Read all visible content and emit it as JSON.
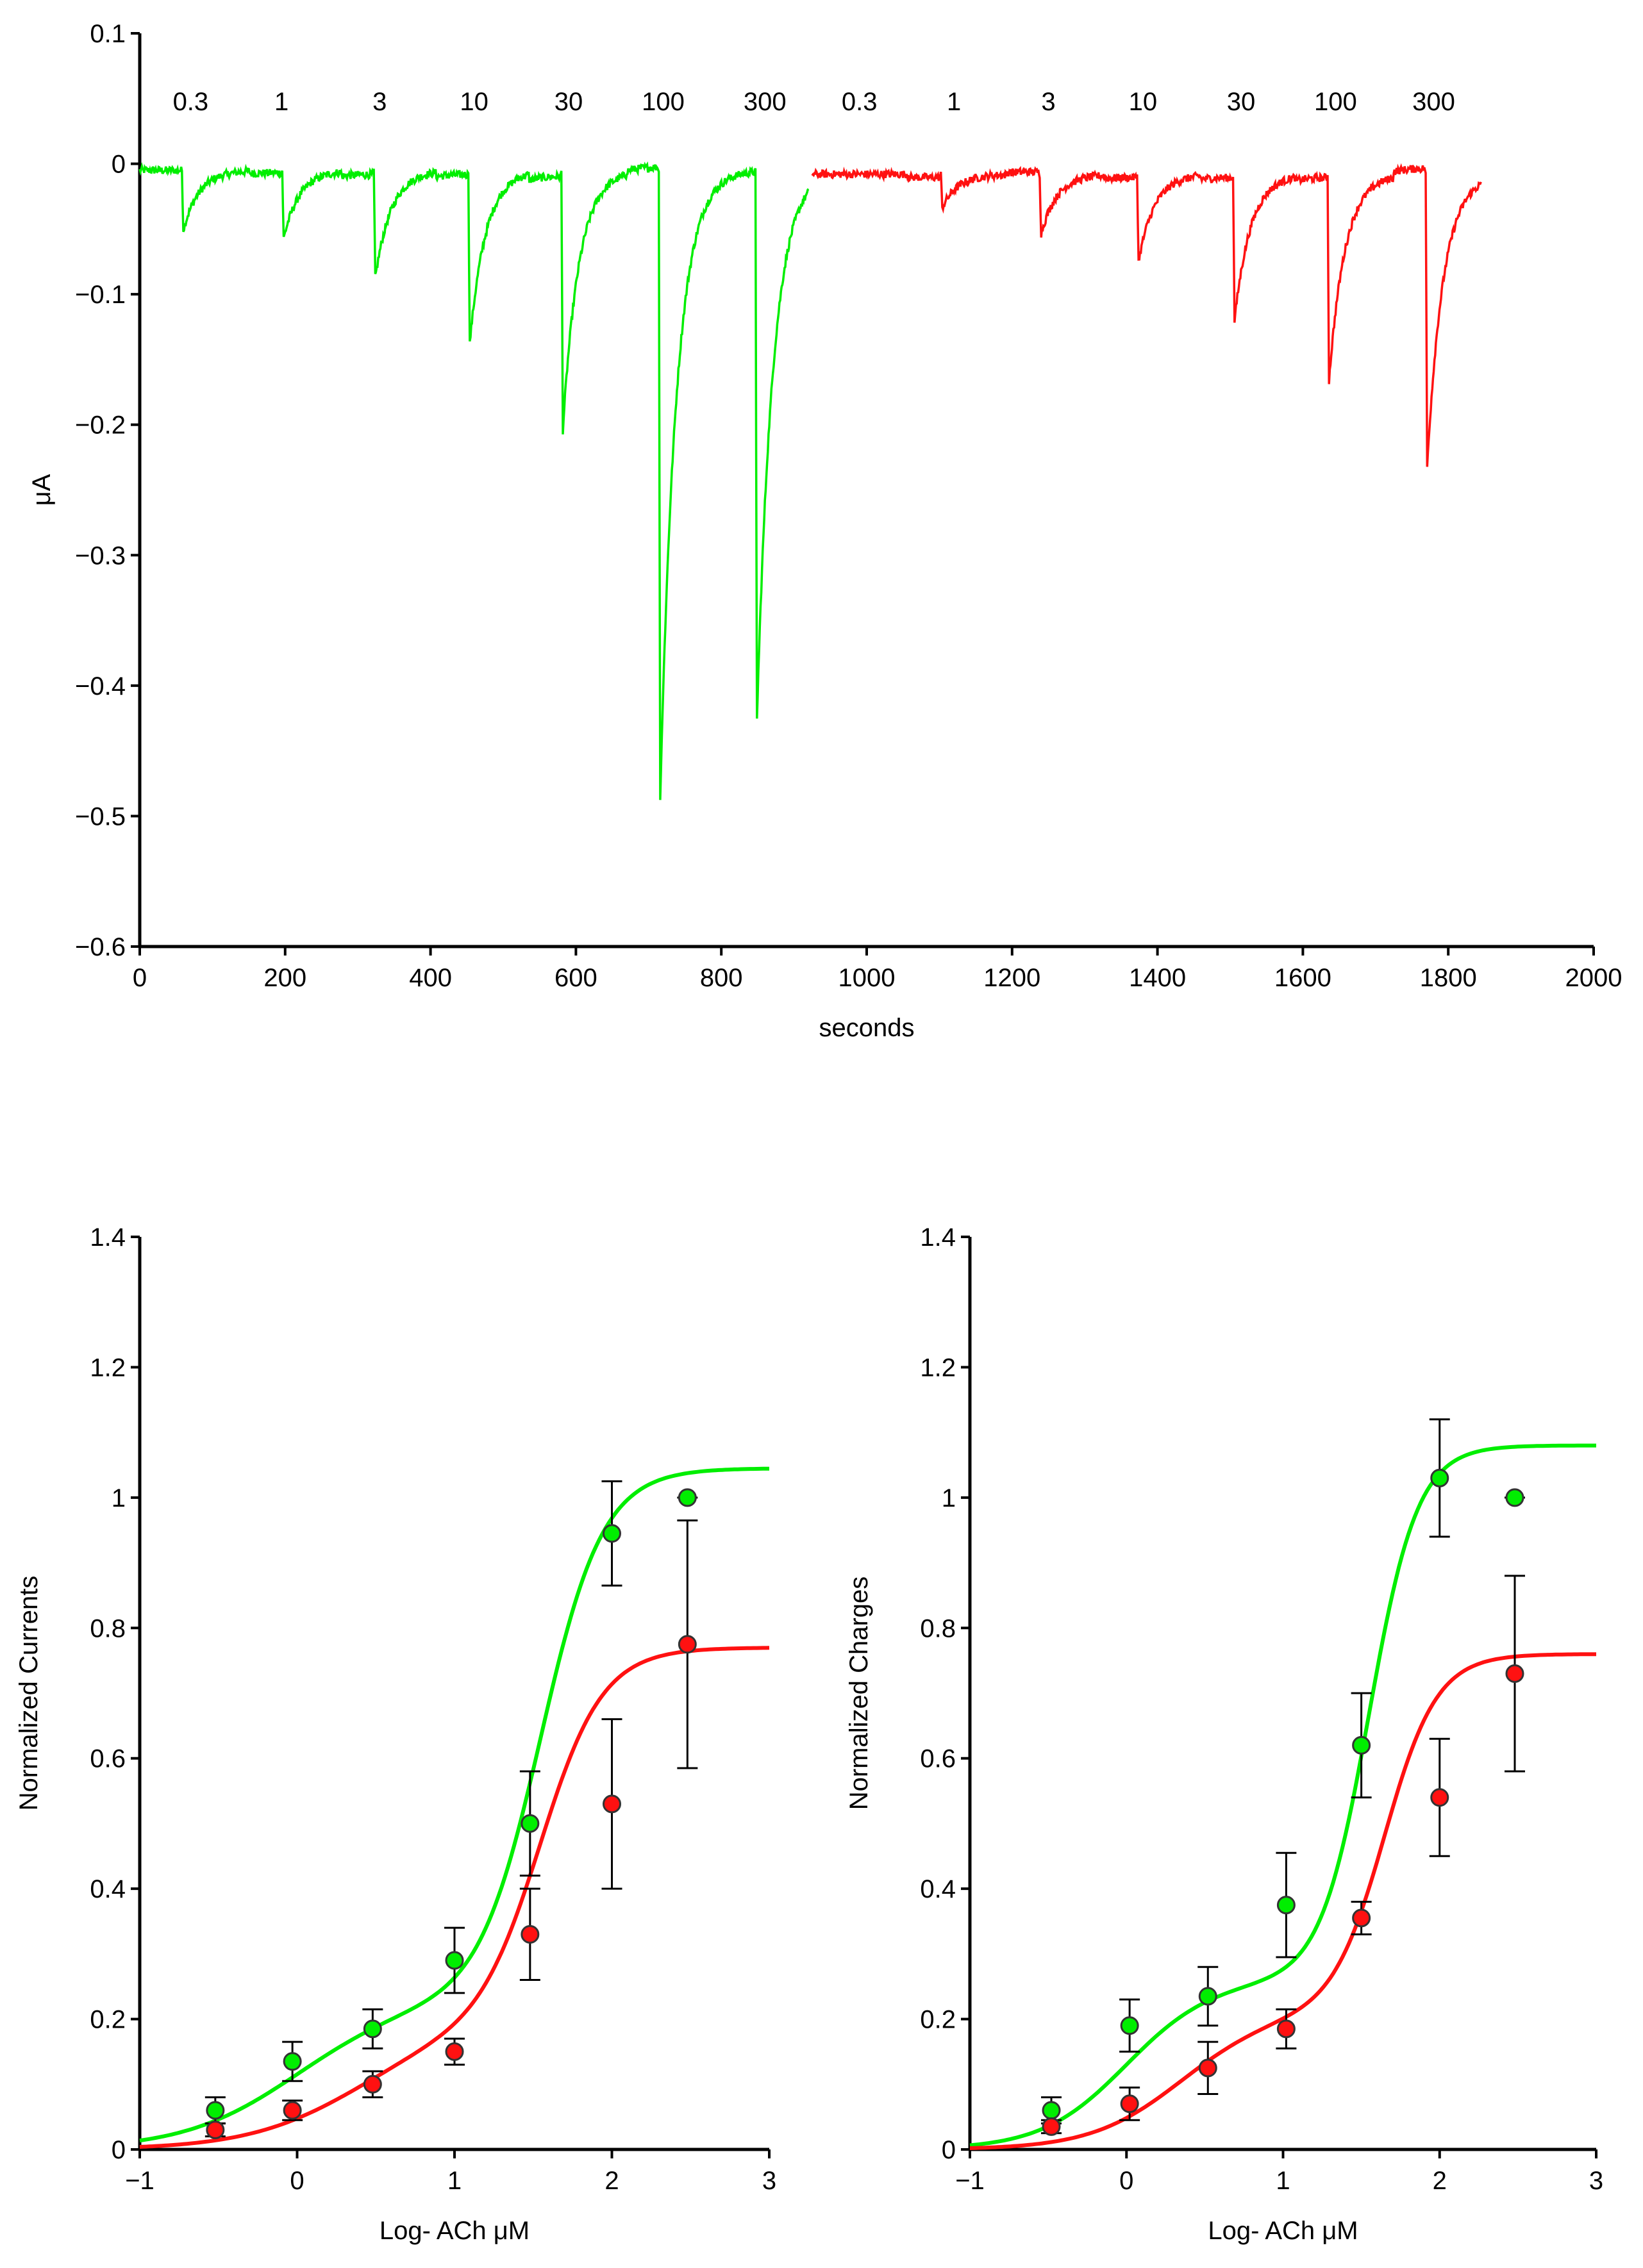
{
  "colors": {
    "control": "#00ee00",
    "treated": "#ff1111",
    "axis": "#000000",
    "marker_stroke": "#333333"
  },
  "chart_data": [
    {
      "type": "line",
      "xlabel": "seconds",
      "ylabel": "μA",
      "xlim": [
        0,
        2000
      ],
      "ylim": [
        -0.6,
        0.1
      ],
      "xticks": [
        "0",
        "200",
        "400",
        "600",
        "800",
        "1000",
        "1200",
        "1400",
        "1600",
        "1800",
        "2000"
      ],
      "yticks": [
        "0.1",
        "0",
        "−0.1",
        "−0.2",
        "−0.3",
        "−0.4",
        "−0.5",
        "−0.6"
      ],
      "grid": false,
      "annotations": [
        {
          "x": 70,
          "label": "0.3"
        },
        {
          "x": 195,
          "label": "1"
        },
        {
          "x": 330,
          "label": "3"
        },
        {
          "x": 460,
          "label": "10"
        },
        {
          "x": 590,
          "label": "30"
        },
        {
          "x": 720,
          "label": "100"
        },
        {
          "x": 860,
          "label": "300"
        },
        {
          "x": 990,
          "label": "0.3"
        },
        {
          "x": 1120,
          "label": "1"
        },
        {
          "x": 1250,
          "label": "3"
        },
        {
          "x": 1380,
          "label": "10"
        },
        {
          "x": 1515,
          "label": "30"
        },
        {
          "x": 1645,
          "label": "100"
        },
        {
          "x": 1780,
          "label": "300"
        }
      ],
      "series": [
        {
          "color": "#00ee00",
          "baseline": -0.005,
          "segment": [
            0,
            920
          ],
          "pulses": [
            {
              "x": 58,
              "peak": -0.055,
              "base": -0.005
            },
            {
              "x": 196,
              "peak": -0.065,
              "base": -0.008
            },
            {
              "x": 322,
              "peak": -0.1,
              "base": -0.01
            },
            {
              "x": 452,
              "peak": -0.155,
              "base": -0.01
            },
            {
              "x": 580,
              "peak": -0.23,
              "base": -0.012
            },
            {
              "x": 714,
              "peak": -0.525,
              "base": 0.0
            },
            {
              "x": 847,
              "peak": -0.465,
              "base": -0.005
            }
          ]
        },
        {
          "color": "#ff1111",
          "baseline": -0.008,
          "segment": [
            925,
            1845
          ],
          "pulses": [
            {
              "x": 1102,
              "peak": -0.04,
              "base": -0.012
            },
            {
              "x": 1238,
              "peak": -0.055,
              "base": -0.005
            },
            {
              "x": 1372,
              "peak": -0.085,
              "base": -0.012
            },
            {
              "x": 1504,
              "peak": -0.135,
              "base": -0.012
            },
            {
              "x": 1634,
              "peak": -0.185,
              "base": -0.012
            },
            {
              "x": 1769,
              "peak": -0.245,
              "base": 0.0
            }
          ]
        }
      ]
    },
    {
      "type": "scatter",
      "xlabel": "Log- ACh μM",
      "ylabel": "Normalized Currents",
      "xlim": [
        -1,
        3
      ],
      "ylim": [
        0,
        1.4
      ],
      "xticks": [
        "−1",
        "0",
        "1",
        "2",
        "3"
      ],
      "yticks": [
        "0",
        "0.2",
        "0.4",
        "0.6",
        "0.8",
        "1",
        "1.2",
        "1.4"
      ],
      "grid": false,
      "series": [
        {
          "color": "#00ee00",
          "x": [
            -0.52,
            -0.03,
            0.48,
            1.0,
            1.48,
            2.0,
            2.48
          ],
          "y": [
            0.06,
            0.135,
            0.185,
            0.29,
            0.5,
            0.945,
            1.0
          ],
          "err": [
            0.02,
            0.03,
            0.03,
            0.05,
            0.08,
            0.08,
            0.0
          ],
          "fit": {
            "bottom": 0.0,
            "f1": 0.23,
            "ec1": 0.0,
            "n1": 1.2,
            "top": 1.045,
            "ec2": 1.55,
            "n2": 2.2
          }
        },
        {
          "color": "#ff1111",
          "x": [
            -0.52,
            -0.03,
            0.48,
            1.0,
            1.48,
            2.0,
            2.48
          ],
          "y": [
            0.03,
            0.06,
            0.1,
            0.15,
            0.33,
            0.53,
            0.775
          ],
          "err": [
            0.01,
            0.015,
            0.02,
            0.02,
            0.07,
            0.13,
            0.19
          ],
          "fit": {
            "bottom": 0.0,
            "f1": 0.19,
            "ec1": 0.4,
            "n1": 1.2,
            "top": 0.77,
            "ec2": 1.55,
            "n2": 2.2
          }
        }
      ]
    },
    {
      "type": "scatter",
      "xlabel": "Log- ACh μM",
      "ylabel": "Normalized Charges",
      "xlim": [
        -1,
        3
      ],
      "ylim": [
        0,
        1.4
      ],
      "xticks": [
        "−1",
        "0",
        "1",
        "2",
        "3"
      ],
      "yticks": [
        "0",
        "0.2",
        "0.4",
        "0.6",
        "0.8",
        "1",
        "1.2",
        "1.4"
      ],
      "grid": false,
      "series": [
        {
          "color": "#00ee00",
          "x": [
            -0.48,
            0.02,
            0.52,
            1.02,
            1.5,
            2.0,
            2.48
          ],
          "y": [
            0.06,
            0.19,
            0.235,
            0.375,
            0.62,
            1.03,
            1.0
          ],
          "err": [
            0.02,
            0.04,
            0.045,
            0.08,
            0.08,
            0.09,
            0.0
          ],
          "fit": {
            "bottom": 0.0,
            "f1": 0.26,
            "ec1": 0.0,
            "n1": 1.6,
            "top": 1.08,
            "ec2": 1.55,
            "n2": 2.8
          }
        },
        {
          "color": "#ff1111",
          "x": [
            -0.48,
            0.02,
            0.52,
            1.02,
            1.5,
            2.0,
            2.48
          ],
          "y": [
            0.035,
            0.07,
            0.125,
            0.185,
            0.355,
            0.54,
            0.73
          ],
          "err": [
            0.01,
            0.025,
            0.04,
            0.03,
            0.025,
            0.09,
            0.15
          ],
          "fit": {
            "bottom": 0.0,
            "f1": 0.21,
            "ec1": 0.35,
            "n1": 1.5,
            "top": 0.76,
            "ec2": 1.65,
            "n2": 2.6
          }
        }
      ]
    }
  ]
}
